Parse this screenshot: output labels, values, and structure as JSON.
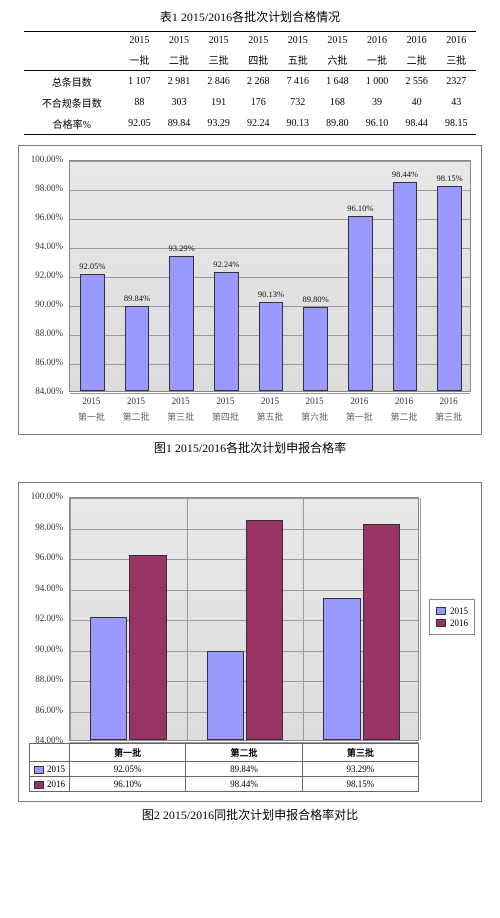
{
  "table": {
    "title": "表1 2015/2016各批次计划合格情况",
    "headers_year": [
      "2015",
      "2015",
      "2015",
      "2015",
      "2015",
      "2015",
      "2016",
      "2016",
      "2016"
    ],
    "headers_batch": [
      "一批",
      "二批",
      "三批",
      "四批",
      "五批",
      "六批",
      "一批",
      "二批",
      "三批"
    ],
    "rows": [
      {
        "label": "总条目数",
        "vals": [
          "1 107",
          "2 981",
          "2 846",
          "2 268",
          "7 416",
          "1 648",
          "1 000",
          "2 556",
          "2327"
        ]
      },
      {
        "label": "不合规条目数",
        "vals": [
          "88",
          "303",
          "191",
          "176",
          "732",
          "168",
          "39",
          "40",
          "43"
        ]
      },
      {
        "label": "合格率%",
        "vals": [
          "92.05",
          "89.84",
          "93.29",
          "92.24",
          "90.13",
          "89.80",
          "96.10",
          "98.44",
          "98.15"
        ]
      }
    ]
  },
  "chart1": {
    "caption": "图1  2015/2016各批次计划申报合格率",
    "type": "bar",
    "ylim": [
      84,
      100
    ],
    "ytick_step": 2,
    "bar_color": "#9999ff",
    "grid_color": "#9a9a9a",
    "background_gradient": [
      "#e8e8e8",
      "#dcdcdc"
    ],
    "categories_year": [
      "2015",
      "2015",
      "2015",
      "2015",
      "2015",
      "2015",
      "2016",
      "2016",
      "2016"
    ],
    "categories_batch": [
      "第一批",
      "第二批",
      "第三批",
      "第四批",
      "第五批",
      "第六批",
      "第一批",
      "第二批",
      "第三批"
    ],
    "values": [
      92.05,
      89.84,
      93.29,
      92.24,
      90.13,
      89.8,
      96.1,
      98.44,
      98.15
    ],
    "value_labels": [
      "92.05%",
      "89.84%",
      "93.29%",
      "92.24%",
      "90.13%",
      "89.80%",
      "96.10%",
      "98.44%",
      "98.15%"
    ],
    "bar_width": 0.55,
    "label_fontsize": 9
  },
  "chart2": {
    "caption": "图2  2015/2016同批次计划申报合格率对比",
    "type": "grouped-bar",
    "ylim": [
      84,
      100
    ],
    "ytick_step": 2,
    "series": [
      {
        "name": "2015",
        "color": "#9999ff",
        "values": [
          92.05,
          89.84,
          93.29
        ]
      },
      {
        "name": "2016",
        "color": "#993366",
        "values": [
          96.1,
          98.44,
          98.15
        ]
      }
    ],
    "categories": [
      "第一批",
      "第二批",
      "第三批"
    ],
    "grid_color": "#9a9a9a",
    "background_gradient": [
      "#e8e8e8",
      "#dcdcdc"
    ],
    "bar_width": 0.32,
    "legend_position": "right",
    "table_below": {
      "rows": [
        {
          "label": "2015",
          "color": "#9999ff",
          "vals": [
            "92.05%",
            "89.84%",
            "93.29%"
          ]
        },
        {
          "label": "2016",
          "color": "#993366",
          "vals": [
            "96.10%",
            "98.44%",
            "98.15%"
          ]
        }
      ]
    }
  }
}
